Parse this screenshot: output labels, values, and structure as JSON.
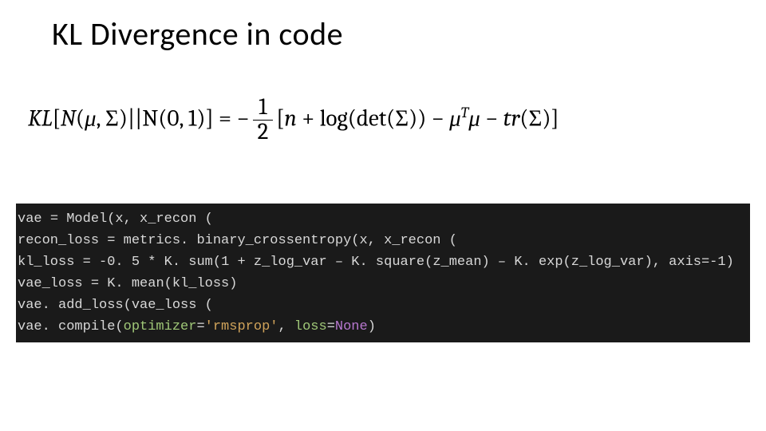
{
  "title": "KL Divergence in code",
  "formula": {
    "lhs_kl": "KL",
    "lhs_open": "[",
    "lhs_n1": "N",
    "lhs_mu": "μ",
    "lhs_sigma": "Σ",
    "lhs_bars": "||",
    "lhs_n2": "N",
    "lhs_01": "(0, 1)",
    "lhs_close": "]",
    "eq": " = ",
    "neg": "−",
    "frac_num": "1",
    "frac_den": "2",
    "br_open": "[",
    "n": "n",
    "plus1": " + ",
    "log": "log",
    "det": "det",
    "sigma2": "Σ",
    "minus1": " − ",
    "mu2": "μ",
    "supT": "T",
    "mu3": "μ",
    "minus2": " − ",
    "tr": "tr",
    "sigma3": "Σ",
    "br_close": "]"
  },
  "code": {
    "l1_a": "vae ",
    "l1_b": "=",
    "l1_c": " Model(x, x_recon (",
    "l2_a": "recon_loss ",
    "l2_b": "=",
    "l2_c": " metrics. binary_crossentropy(x, x_recon (",
    "l3_a": "kl_loss ",
    "l3_b": "=",
    "l3_c": " -",
    "l3_d": "0. 5",
    "l3_e": " * K. sum(",
    "l3_f": "1",
    "l3_g": " + z_log_var – K. square(z_mean) – K. exp(z_log_var), axis=-",
    "l3_h": "1",
    "l3_i": ")",
    "l4_a": "vae_loss ",
    "l4_b": "=",
    "l4_c": " K. mean(kl_loss)",
    "l5_a": "vae. add_loss(vae_loss (",
    "l6_a": "vae. compile(",
    "l6_b": "optimizer",
    "l6_c": "=",
    "l6_d": "'rmsprop'",
    "l6_e": ", ",
    "l6_f": "loss",
    "l6_g": "=",
    "l6_h": "None",
    "l6_i": ")"
  },
  "style": {
    "bg": "#ffffff",
    "code_bg": "#1a1a1a",
    "code_fg": "#d8d8d8",
    "kw_color": "#a0c878",
    "str_color": "#d0a35a",
    "none_color": "#b878d0",
    "title_fontsize": 40,
    "formula_fontsize": 29,
    "code_fontsize": 17
  }
}
